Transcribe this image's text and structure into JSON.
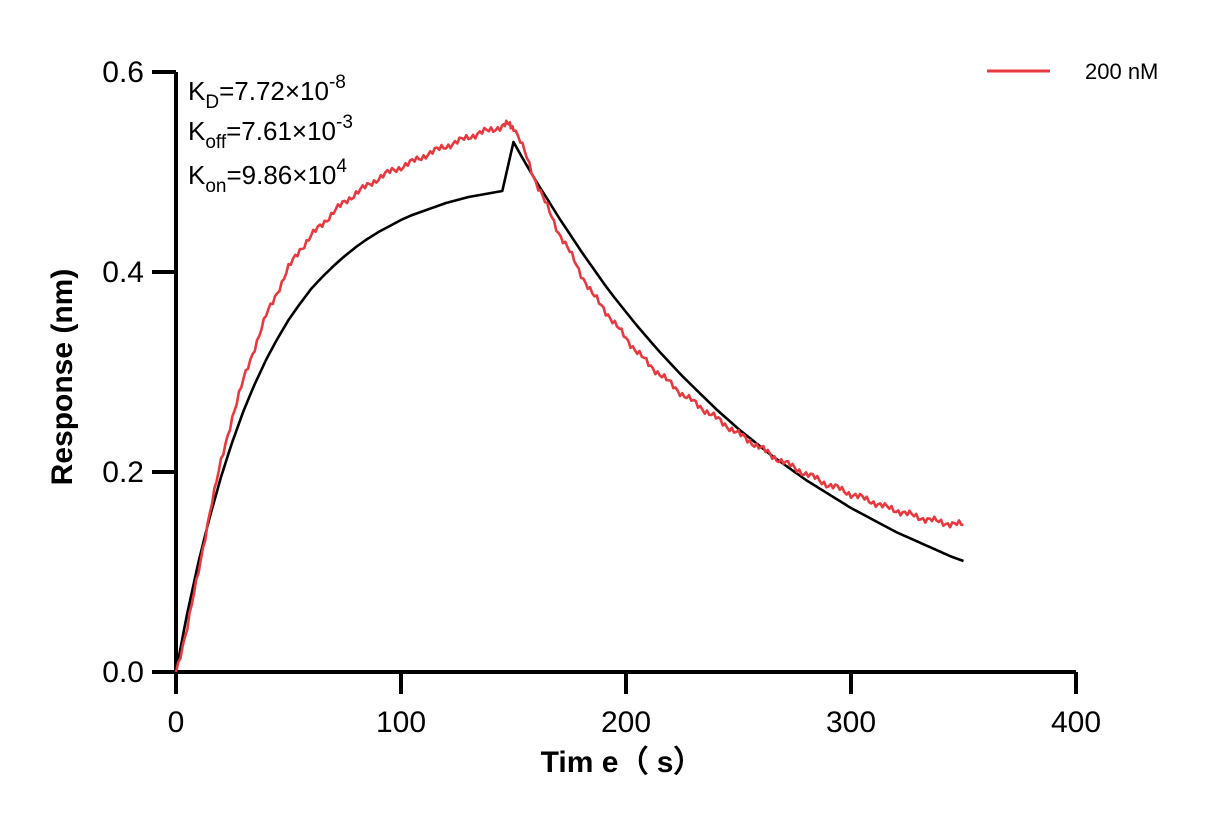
{
  "chart_data": {
    "type": "line",
    "title": "",
    "xlabel": "Tim e（ s）",
    "ylabel": "Response (nm)",
    "xlim": [
      0,
      400
    ],
    "ylim": [
      0,
      0.6
    ],
    "x_ticks": [
      "0",
      "100",
      "200",
      "300",
      "400"
    ],
    "y_ticks": [
      "0.0",
      "0.2",
      "0.4",
      "0.6"
    ],
    "grid": false,
    "legend_position": "top-right",
    "annotations": {
      "kd": {
        "base": "K",
        "sub": "D",
        "mid": "=7.72×10",
        "sup": "-8"
      },
      "koff": {
        "base": "K",
        "sub": "off",
        "mid": "=7.61×10",
        "sup": "-3"
      },
      "kon": {
        "base": "K",
        "sub": "on",
        "mid": "=9.86×10",
        "sup": "4"
      }
    },
    "series": [
      {
        "name": "200 nM",
        "color": "#e8393f",
        "role": "measured",
        "x": [
          0,
          5,
          10,
          15,
          20,
          25,
          30,
          35,
          40,
          45,
          50,
          55,
          60,
          65,
          70,
          75,
          80,
          85,
          90,
          95,
          100,
          105,
          110,
          115,
          120,
          125,
          130,
          135,
          140,
          145,
          148,
          150,
          155,
          160,
          165,
          170,
          175,
          180,
          185,
          190,
          195,
          200,
          205,
          210,
          215,
          220,
          225,
          230,
          235,
          240,
          245,
          250,
          255,
          260,
          265,
          270,
          275,
          280,
          285,
          290,
          295,
          300,
          305,
          310,
          315,
          320,
          325,
          330,
          335,
          340,
          345,
          350
        ],
        "y": [
          0.0,
          0.045,
          0.1,
          0.16,
          0.21,
          0.255,
          0.292,
          0.325,
          0.356,
          0.38,
          0.404,
          0.422,
          0.436,
          0.448,
          0.46,
          0.47,
          0.479,
          0.486,
          0.494,
          0.5,
          0.505,
          0.51,
          0.516,
          0.521,
          0.526,
          0.53,
          0.535,
          0.539,
          0.542,
          0.546,
          0.548,
          0.545,
          0.52,
          0.49,
          0.465,
          0.44,
          0.42,
          0.398,
          0.378,
          0.364,
          0.348,
          0.334,
          0.32,
          0.308,
          0.298,
          0.288,
          0.278,
          0.27,
          0.262,
          0.254,
          0.246,
          0.238,
          0.231,
          0.224,
          0.216,
          0.21,
          0.204,
          0.198,
          0.193,
          0.187,
          0.183,
          0.178,
          0.174,
          0.17,
          0.165,
          0.162,
          0.158,
          0.155,
          0.152,
          0.15,
          0.148,
          0.147
        ]
      },
      {
        "name": "",
        "color": "#000000",
        "role": "fit",
        "x": [
          0,
          5,
          10,
          15,
          20,
          25,
          30,
          35,
          40,
          45,
          50,
          55,
          60,
          65,
          70,
          75,
          80,
          85,
          90,
          95,
          100,
          105,
          110,
          115,
          120,
          125,
          130,
          135,
          140,
          145,
          150,
          155,
          160,
          165,
          170,
          175,
          180,
          185,
          190,
          195,
          200,
          205,
          210,
          215,
          220,
          225,
          230,
          235,
          240,
          245,
          250,
          255,
          260,
          265,
          270,
          275,
          280,
          285,
          290,
          295,
          300,
          305,
          310,
          315,
          320,
          325,
          330,
          335,
          340,
          345,
          350
        ],
        "y": [
          0.0,
          0.059,
          0.11,
          0.155,
          0.195,
          0.23,
          0.261,
          0.288,
          0.312,
          0.333,
          0.352,
          0.368,
          0.383,
          0.395,
          0.406,
          0.416,
          0.425,
          0.433,
          0.44,
          0.446,
          0.452,
          0.457,
          0.461,
          0.465,
          0.469,
          0.472,
          0.475,
          0.477,
          0.479,
          0.481,
          0.53,
          0.51,
          0.491,
          0.473,
          0.455,
          0.438,
          0.421,
          0.405,
          0.389,
          0.374,
          0.36,
          0.346,
          0.333,
          0.32,
          0.308,
          0.296,
          0.285,
          0.274,
          0.263,
          0.253,
          0.243,
          0.234,
          0.225,
          0.216,
          0.208,
          0.2,
          0.192,
          0.185,
          0.178,
          0.171,
          0.164,
          0.158,
          0.152,
          0.146,
          0.14,
          0.135,
          0.13,
          0.125,
          0.12,
          0.115,
          0.111
        ]
      }
    ]
  }
}
